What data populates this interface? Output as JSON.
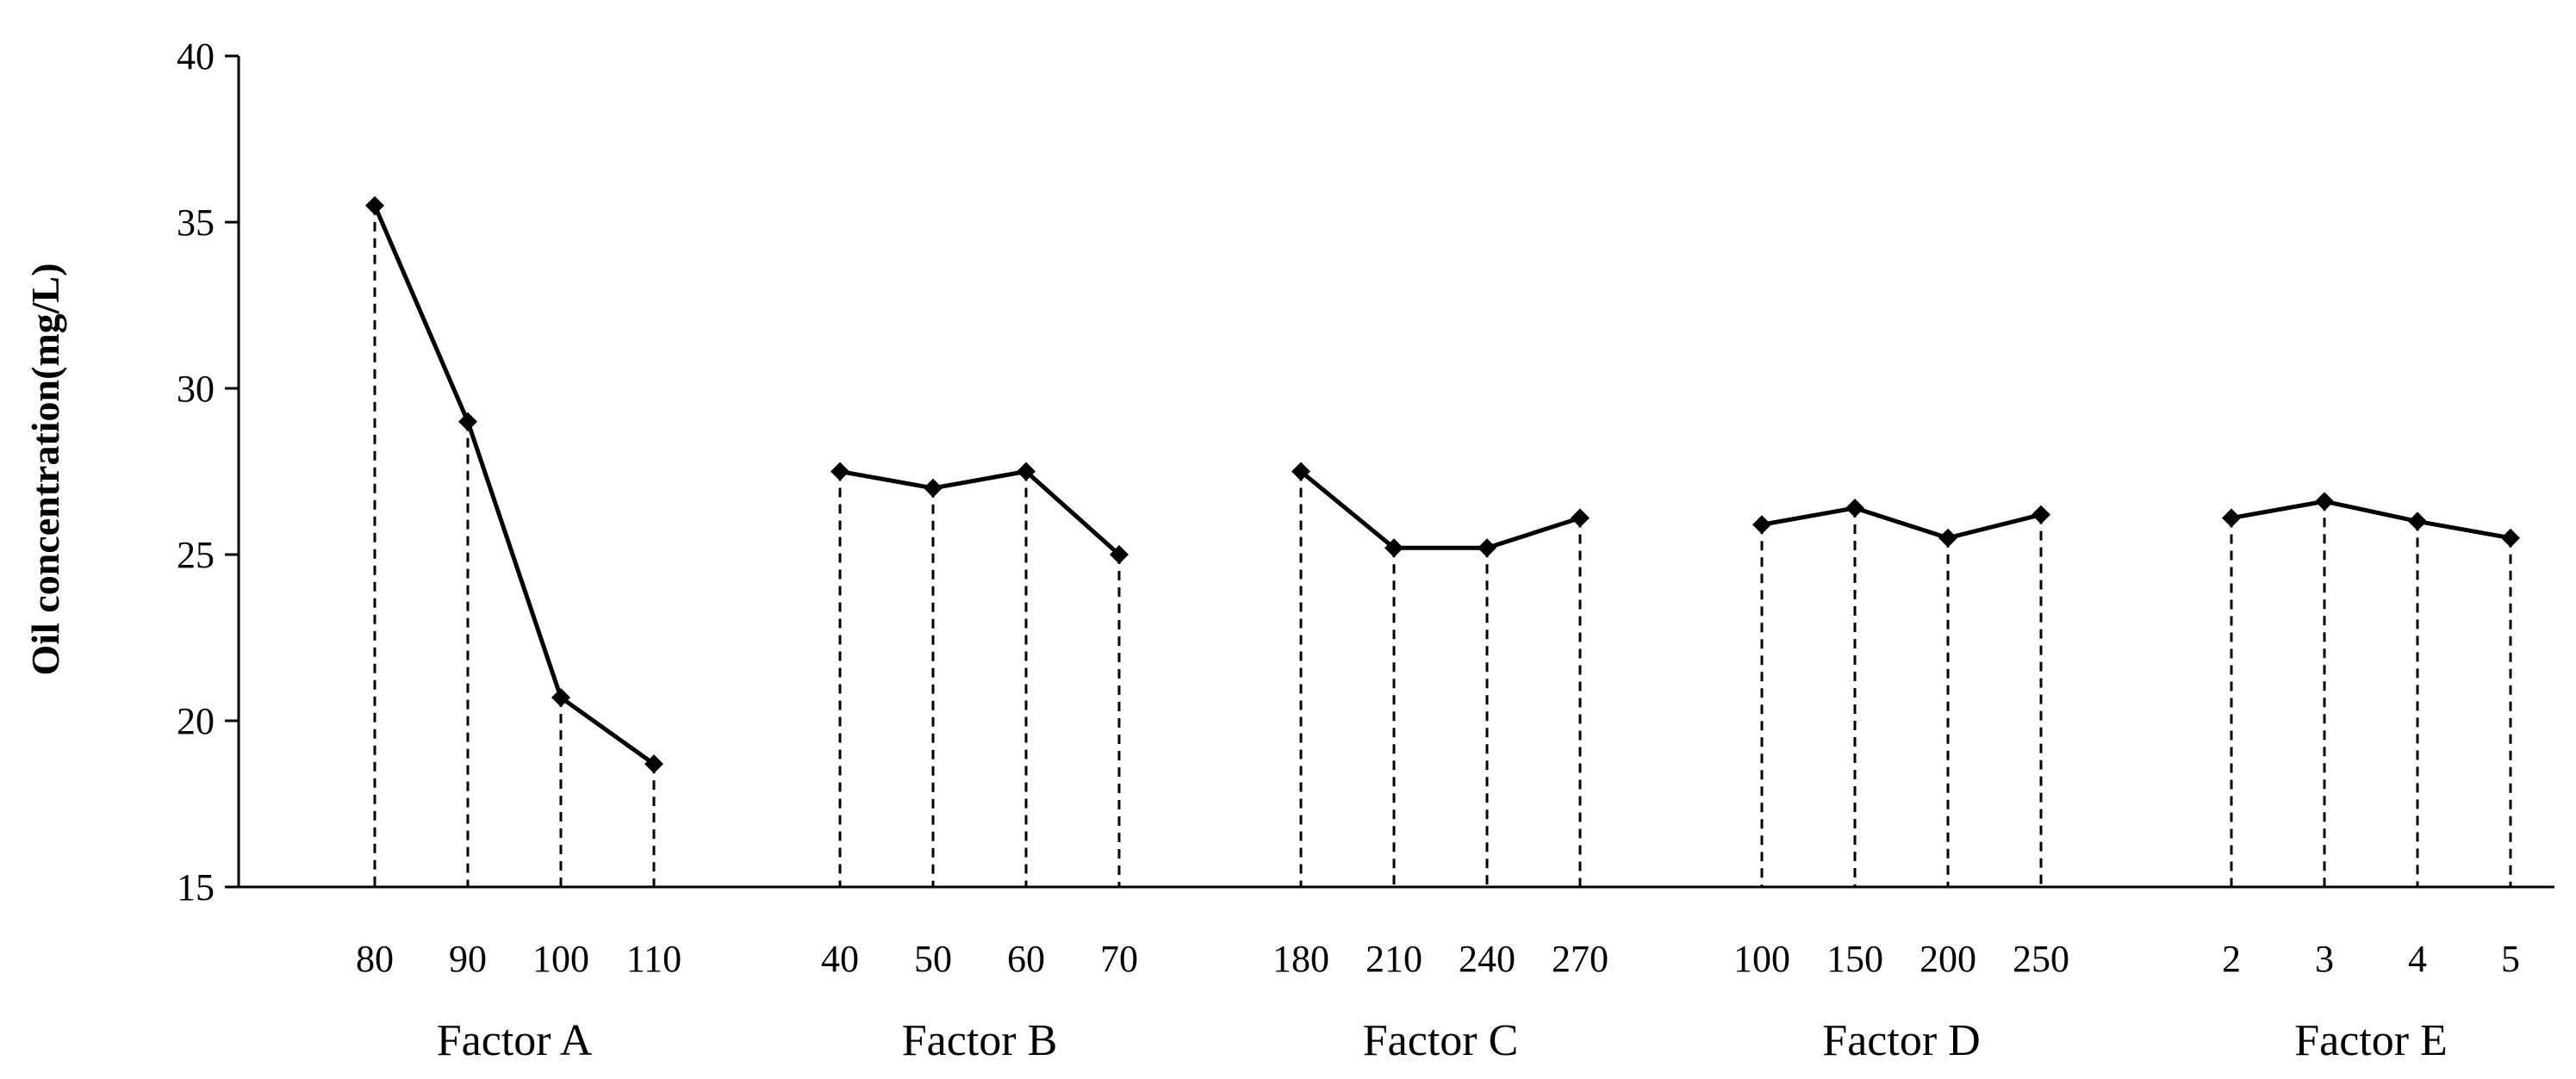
{
  "chart_data": {
    "type": "line",
    "title": "",
    "ylabel": "Oil concentration(mg/L)",
    "ylim": [
      15,
      40
    ],
    "yticks": [
      "15",
      "20",
      "25",
      "30",
      "35",
      "40"
    ],
    "grid": false,
    "legend": "none",
    "drop_lines": true,
    "line_color": "#000000",
    "groups": [
      {
        "name": "Factor A",
        "categories": [
          "80",
          "90",
          "100",
          "110"
        ],
        "values": [
          35.5,
          29.0,
          20.7,
          18.7
        ]
      },
      {
        "name": "Factor B",
        "categories": [
          "40",
          "50",
          "60",
          "70"
        ],
        "values": [
          27.5,
          27.0,
          27.5,
          25.0
        ]
      },
      {
        "name": "Factor C",
        "categories": [
          "180",
          "210",
          "240",
          "270"
        ],
        "values": [
          27.5,
          25.2,
          25.2,
          26.1
        ]
      },
      {
        "name": "Factor D",
        "categories": [
          "100",
          "150",
          "200",
          "250"
        ],
        "values": [
          25.9,
          26.4,
          25.5,
          26.2
        ]
      },
      {
        "name": "Factor E",
        "categories": [
          "2",
          "3",
          "4",
          "5"
        ],
        "values": [
          26.1,
          26.6,
          26.0,
          25.5
        ]
      }
    ]
  }
}
